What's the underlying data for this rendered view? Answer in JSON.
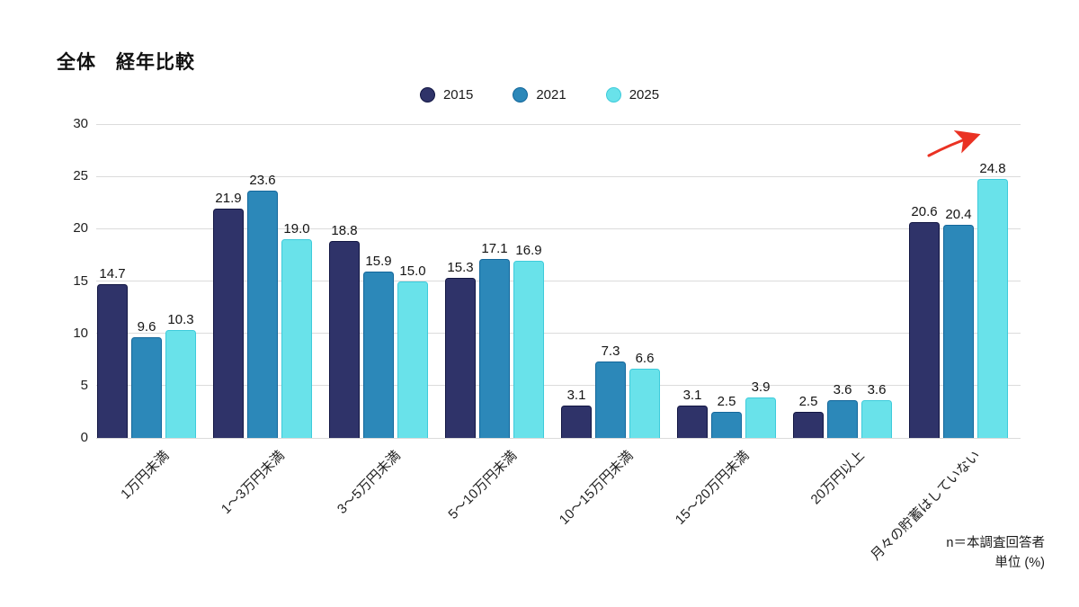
{
  "page": {
    "title": "全体　経年比較"
  },
  "legend": {
    "items": [
      {
        "label": "2015",
        "color": "#2F3369",
        "border": "#121643"
      },
      {
        "label": "2021",
        "color": "#2C88B9",
        "border": "#13679B"
      },
      {
        "label": "2025",
        "color": "#69E2EA",
        "border": "#3ECBDB"
      }
    ]
  },
  "note": {
    "line1": "n＝本調査回答者",
    "line2": "単位 (%)"
  },
  "annotation": {
    "arrow_color": "#EA3223",
    "target": "2025 月々の貯蓄はしていない 24.8"
  },
  "chart_data": {
    "type": "bar",
    "title": "全体　経年比較",
    "categories": [
      "1万円未満",
      "1～3万円未満",
      "3～5万円未満",
      "5～10万円未満",
      "10～15万円未満",
      "15～20万円未満",
      "20万円以上",
      "月々の貯蓄はしていない"
    ],
    "series": [
      {
        "name": "2015",
        "color": "#2F3369",
        "border": "#121643",
        "values": [
          14.7,
          21.9,
          18.8,
          15.3,
          3.1,
          3.1,
          2.5,
          20.6
        ]
      },
      {
        "name": "2021",
        "color": "#2C88B9",
        "border": "#13679B",
        "values": [
          9.6,
          23.6,
          15.9,
          17.1,
          7.3,
          2.5,
          3.6,
          20.4
        ]
      },
      {
        "name": "2025",
        "color": "#69E2EA",
        "border": "#3ECBDB",
        "values": [
          10.3,
          19.0,
          15.0,
          16.9,
          6.6,
          3.9,
          3.6,
          24.8
        ]
      }
    ],
    "xlabel": "",
    "ylabel": "",
    "ylim": [
      0,
      30
    ],
    "yticks": [
      0,
      5,
      10,
      15,
      20,
      25,
      30
    ],
    "grid": true,
    "legend_position": "top",
    "value_labels": true,
    "value_label_decimals": 1
  }
}
